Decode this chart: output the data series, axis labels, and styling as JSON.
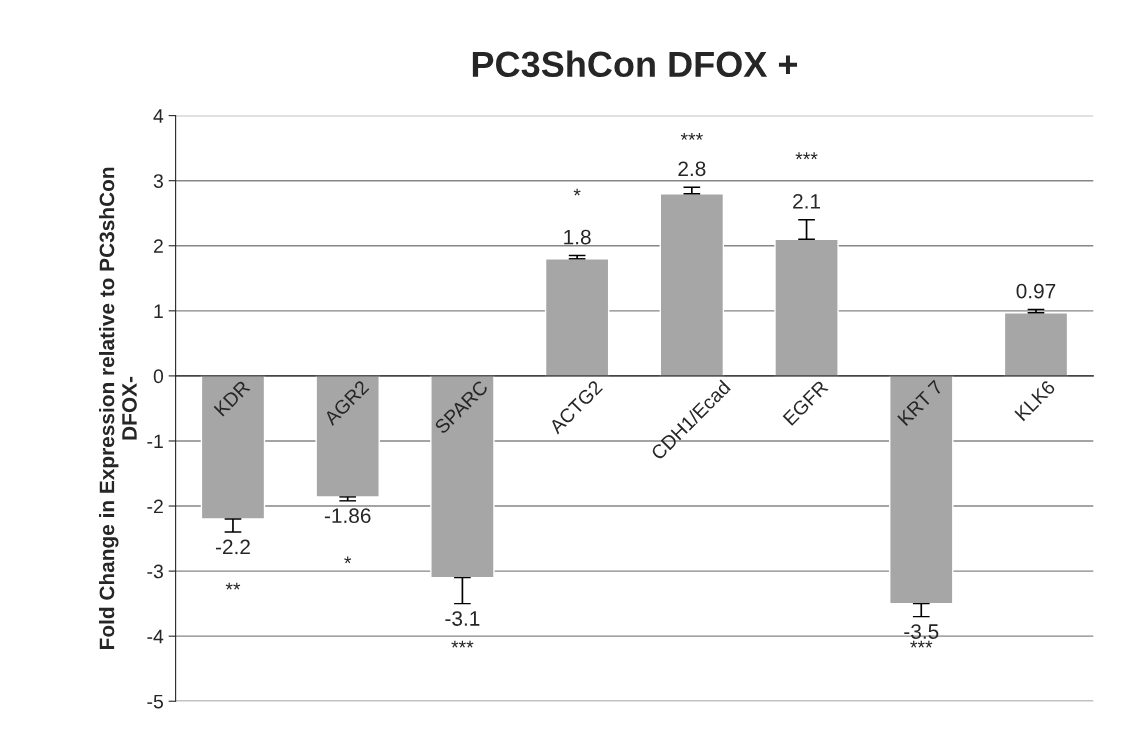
{
  "chart_data": {
    "type": "bar",
    "title": "PC3ShCon DFOX +",
    "ylabel": "Fold Change in Expression relative to PC3shCon\nDFOX-",
    "categories": [
      "KDR",
      "AGR2",
      "SPARC",
      "ACTG2",
      "CDH1/Ecad",
      "EGFR",
      "KRT 7",
      "KLK6"
    ],
    "values": [
      -2.2,
      -1.86,
      -3.1,
      1.8,
      2.8,
      2.1,
      -3.5,
      0.97
    ],
    "errors": [
      [
        -2.4,
        -2.2
      ],
      [
        -1.92,
        -1.86
      ],
      [
        -3.5,
        -3.1
      ],
      [
        1.8,
        1.85
      ],
      [
        2.8,
        2.9
      ],
      [
        2.1,
        2.4
      ],
      [
        -3.7,
        -3.5
      ],
      [
        0.97,
        1.02
      ]
    ],
    "color": "#a6a6a6",
    "data_labels": true,
    "ylim": [
      -5,
      4
    ],
    "yticks": [
      -5,
      -4,
      -3,
      -2,
      -1,
      0,
      1,
      2,
      3,
      4
    ],
    "grid": "y",
    "annotations": [
      "**",
      "*",
      "***",
      "*",
      "***",
      "***",
      "***"
    ]
  }
}
